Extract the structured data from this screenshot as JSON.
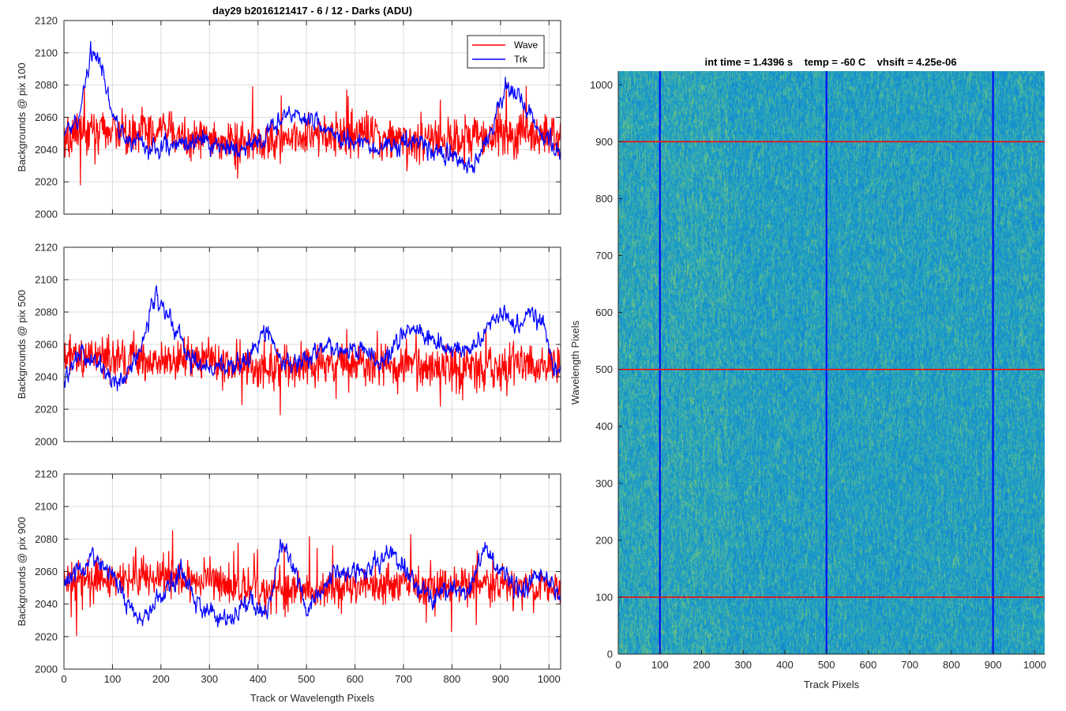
{
  "figure_title": "day29 b2016121417 - 6 / 12 - Darks (ADU)",
  "image_title": "int time = 1.4396 s    temp = -60 C    vhsift = 4.25e-06",
  "colors": {
    "wave": "#ff0000",
    "trk": "#0000ff",
    "axis": "#262626",
    "grid": "#dcdcdc",
    "image_base": "#1a9fc8"
  },
  "chart_data": [
    {
      "type": "line",
      "ylabel": "Backgrounds @ pix 100",
      "xlabel": "",
      "xlim": [
        0,
        1024
      ],
      "ylim": [
        2000,
        2120
      ],
      "xticks": [
        0,
        100,
        200,
        300,
        400,
        500,
        600,
        700,
        800,
        900,
        1000
      ],
      "yticks": [
        2000,
        2020,
        2040,
        2060,
        2080,
        2100,
        2120
      ],
      "grid": true,
      "legend": "top-right",
      "series": [
        {
          "name": "Wave",
          "color": "#ff0000",
          "mean": 2048,
          "noise": 12,
          "envelope": [
            [
              0,
              2048
            ],
            [
              100,
              2050
            ],
            [
              200,
              2050
            ],
            [
              300,
              2046
            ],
            [
              400,
              2045
            ],
            [
              500,
              2048
            ],
            [
              600,
              2050
            ],
            [
              700,
              2048
            ],
            [
              800,
              2045
            ],
            [
              900,
              2050
            ],
            [
              1024,
              2048
            ]
          ]
        },
        {
          "name": "Trk",
          "color": "#0000ff",
          "mean": 2045,
          "noise": 5,
          "envelope": [
            [
              0,
              2050
            ],
            [
              30,
              2060
            ],
            [
              55,
              2100
            ],
            [
              75,
              2095
            ],
            [
              100,
              2060
            ],
            [
              140,
              2045
            ],
            [
              200,
              2040
            ],
            [
              260,
              2045
            ],
            [
              300,
              2045
            ],
            [
              350,
              2040
            ],
            [
              400,
              2045
            ],
            [
              460,
              2062
            ],
            [
              500,
              2060
            ],
            [
              560,
              2050
            ],
            [
              600,
              2045
            ],
            [
              650,
              2040
            ],
            [
              700,
              2045
            ],
            [
              760,
              2040
            ],
            [
              800,
              2035
            ],
            [
              840,
              2030
            ],
            [
              880,
              2050
            ],
            [
              910,
              2080
            ],
            [
              940,
              2075
            ],
            [
              960,
              2060
            ],
            [
              1000,
              2045
            ],
            [
              1024,
              2035
            ]
          ]
        }
      ]
    },
    {
      "type": "line",
      "ylabel": "Backgrounds @ pix 500",
      "xlabel": "",
      "xlim": [
        0,
        1024
      ],
      "ylim": [
        2000,
        2120
      ],
      "xticks": [
        0,
        100,
        200,
        300,
        400,
        500,
        600,
        700,
        800,
        900,
        1000
      ],
      "yticks": [
        2000,
        2020,
        2040,
        2060,
        2080,
        2100,
        2120
      ],
      "grid": true,
      "series": [
        {
          "name": "Wave",
          "color": "#ff0000",
          "mean": 2048,
          "noise": 12,
          "envelope": [
            [
              0,
              2050
            ],
            [
              200,
              2052
            ],
            [
              400,
              2046
            ],
            [
              600,
              2048
            ],
            [
              800,
              2046
            ],
            [
              1024,
              2048
            ]
          ]
        },
        {
          "name": "Trk",
          "color": "#0000ff",
          "mean": 2050,
          "noise": 5,
          "envelope": [
            [
              0,
              2040
            ],
            [
              40,
              2055
            ],
            [
              80,
              2045
            ],
            [
              110,
              2035
            ],
            [
              150,
              2050
            ],
            [
              190,
              2090
            ],
            [
              220,
              2075
            ],
            [
              260,
              2050
            ],
            [
              300,
              2048
            ],
            [
              360,
              2045
            ],
            [
              400,
              2060
            ],
            [
              420,
              2070
            ],
            [
              460,
              2045
            ],
            [
              500,
              2050
            ],
            [
              540,
              2060
            ],
            [
              580,
              2055
            ],
            [
              620,
              2055
            ],
            [
              660,
              2050
            ],
            [
              700,
              2065
            ],
            [
              720,
              2070
            ],
            [
              780,
              2060
            ],
            [
              800,
              2055
            ],
            [
              850,
              2060
            ],
            [
              900,
              2080
            ],
            [
              930,
              2070
            ],
            [
              960,
              2080
            ],
            [
              990,
              2070
            ],
            [
              1010,
              2045
            ],
            [
              1024,
              2045
            ]
          ]
        }
      ]
    },
    {
      "type": "line",
      "ylabel": "Backgrounds @ pix 900",
      "xlabel": "Track or Wavelength Pixels",
      "xlim": [
        0,
        1024
      ],
      "ylim": [
        2000,
        2120
      ],
      "xticks": [
        0,
        100,
        200,
        300,
        400,
        500,
        600,
        700,
        800,
        900,
        1000
      ],
      "yticks": [
        2000,
        2020,
        2040,
        2060,
        2080,
        2100,
        2120
      ],
      "grid": true,
      "series": [
        {
          "name": "Wave",
          "color": "#ff0000",
          "mean": 2052,
          "noise": 11,
          "envelope": [
            [
              0,
              2055
            ],
            [
              200,
              2058
            ],
            [
              400,
              2048
            ],
            [
              600,
              2050
            ],
            [
              800,
              2052
            ],
            [
              1024,
              2050
            ]
          ]
        },
        {
          "name": "Trk",
          "color": "#0000ff",
          "mean": 2048,
          "noise": 5,
          "envelope": [
            [
              0,
              2055
            ],
            [
              60,
              2070
            ],
            [
              100,
              2060
            ],
            [
              130,
              2040
            ],
            [
              160,
              2030
            ],
            [
              200,
              2045
            ],
            [
              240,
              2060
            ],
            [
              280,
              2040
            ],
            [
              320,
              2030
            ],
            [
              380,
              2040
            ],
            [
              420,
              2035
            ],
            [
              450,
              2080
            ],
            [
              480,
              2060
            ],
            [
              500,
              2035
            ],
            [
              560,
              2060
            ],
            [
              620,
              2060
            ],
            [
              680,
              2070
            ],
            [
              720,
              2055
            ],
            [
              760,
              2045
            ],
            [
              800,
              2050
            ],
            [
              830,
              2045
            ],
            [
              870,
              2075
            ],
            [
              900,
              2060
            ],
            [
              940,
              2045
            ],
            [
              980,
              2060
            ],
            [
              1024,
              2045
            ]
          ]
        }
      ]
    },
    {
      "type": "heatmap",
      "xlabel": "Track Pixels",
      "ylabel": "Wavelength Pixels",
      "xlim": [
        0,
        1024
      ],
      "ylim": [
        0,
        1024
      ],
      "xticks": [
        0,
        100,
        200,
        300,
        400,
        500,
        600,
        700,
        800,
        900,
        1000
      ],
      "yticks": [
        0,
        100,
        200,
        300,
        400,
        500,
        600,
        700,
        800,
        900,
        1000
      ],
      "vertical_lines": [
        100,
        500,
        900
      ],
      "horizontal_lines": [
        100,
        500,
        900
      ],
      "vertical_line_color": "#0000ff",
      "horizontal_line_color": "#ff0000"
    }
  ],
  "legend": [
    {
      "label": "Wave",
      "color": "#ff0000"
    },
    {
      "label": "Trk",
      "color": "#0000ff"
    }
  ]
}
